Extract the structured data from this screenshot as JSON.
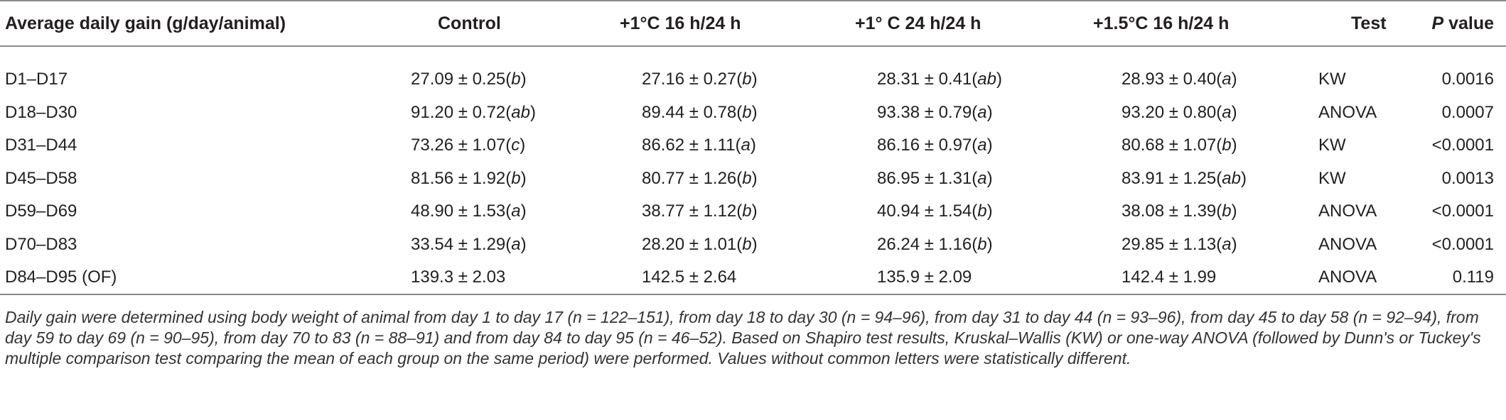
{
  "table": {
    "header": [
      [
        "Average daily gain (g/day/animal)"
      ],
      [
        "Control"
      ],
      [
        "+1°C 16 h/24 h"
      ],
      [
        "+1° C 24 h/24 h"
      ],
      [
        "+1.5°C 16 h/24 h"
      ],
      [
        "Test"
      ],
      [
        "",
        "P",
        " value"
      ]
    ],
    "rows": [
      [
        [
          "D1–D17"
        ],
        [
          "27.09 ± 0.25(",
          "b",
          ")"
        ],
        [
          "27.16 ± 0.27(",
          "b",
          ")"
        ],
        [
          "28.31 ± 0.41(",
          "ab",
          ")"
        ],
        [
          "28.93 ± 0.40(",
          "a",
          ")"
        ],
        [
          "KW"
        ],
        [
          "0.0016"
        ]
      ],
      [
        [
          "D18–D30"
        ],
        [
          "91.20 ± 0.72(",
          "ab",
          ")"
        ],
        [
          "89.44 ± 0.78(",
          "b",
          ")"
        ],
        [
          "93.38 ± 0.79(",
          "a",
          ")"
        ],
        [
          "93.20 ± 0.80(",
          "a",
          ")"
        ],
        [
          "ANOVA"
        ],
        [
          "0.0007"
        ]
      ],
      [
        [
          "D31–D44"
        ],
        [
          "73.26 ± 1.07(",
          "c",
          ")"
        ],
        [
          "86.62 ± 1.11(",
          "a",
          ")"
        ],
        [
          "86.16 ± 0.97(",
          "a",
          ")"
        ],
        [
          "80.68 ± 1.07(",
          "b",
          ")"
        ],
        [
          "KW"
        ],
        [
          "<0.0001"
        ]
      ],
      [
        [
          "D45–D58"
        ],
        [
          "81.56 ± 1.92(",
          "b",
          ")"
        ],
        [
          "80.77 ± 1.26(",
          "b",
          ")"
        ],
        [
          "86.95 ± 1.31(",
          "a",
          ")"
        ],
        [
          "83.91 ± 1.25(",
          "ab",
          ")"
        ],
        [
          "KW"
        ],
        [
          "0.0013"
        ]
      ],
      [
        [
          "D59–D69"
        ],
        [
          "48.90 ± 1.53(",
          "a",
          ")"
        ],
        [
          "38.77 ± 1.12(",
          "b",
          ")"
        ],
        [
          "40.94 ± 1.54(",
          "b",
          ")"
        ],
        [
          "38.08 ± 1.39(",
          "b",
          ")"
        ],
        [
          "ANOVA"
        ],
        [
          "<0.0001"
        ]
      ],
      [
        [
          "D70–D83"
        ],
        [
          "33.54 ± 1.29(",
          "a",
          ")"
        ],
        [
          "28.20 ± 1.01(",
          "b",
          ")"
        ],
        [
          "26.24 ± 1.16(",
          "b",
          ")"
        ],
        [
          "29.85 ± 1.13(",
          "a",
          ")"
        ],
        [
          "ANOVA"
        ],
        [
          "<0.0001"
        ]
      ],
      [
        [
          "D84–D95 (OF)"
        ],
        [
          "139.3 ± 2.03"
        ],
        [
          "142.5 ± 2.64"
        ],
        [
          "135.9 ± 2.09"
        ],
        [
          "142.4 ± 1.99"
        ],
        [
          "ANOVA"
        ],
        [
          "0.119"
        ]
      ]
    ]
  },
  "footnote": "Daily gain were determined using body weight of animal from day 1 to day 17 (n = 122–151), from day 18 to day 30 (n = 94–96), from day 31 to day 44 (n = 93–96), from day 45 to day 58 (n = 92–94), from day 59 to day 69 (n = 90–95), from day 70 to 83 (n = 88–91) and from day 84 to day 95 (n = 46–52). Based on Shapiro test results, Kruskal–Wallis (KW) or one-way ANOVA (followed by Dunn's or Tuckey's multiple comparison test comparing the mean of each group on the same period) were performed. Values without common letters were statistically different."
}
